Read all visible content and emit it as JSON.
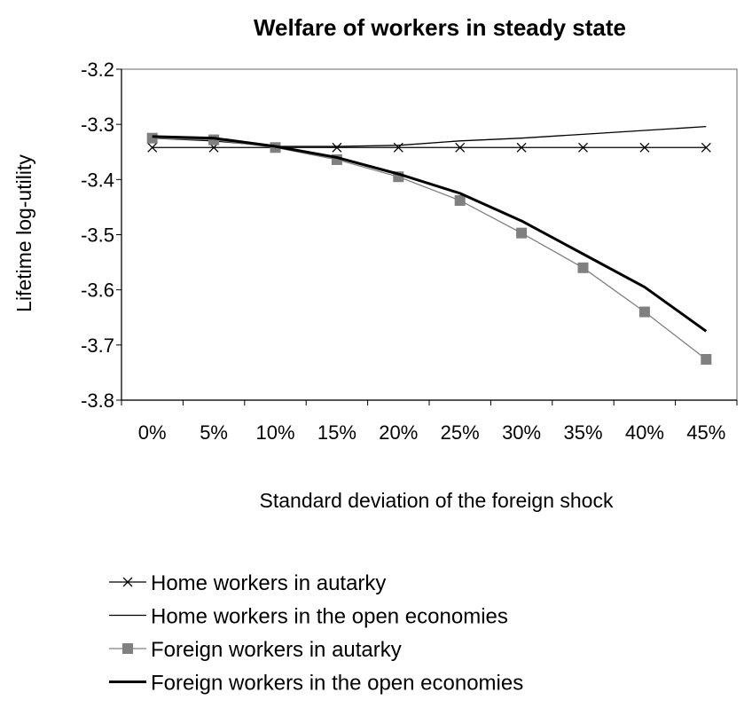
{
  "chart_data": {
    "type": "line",
    "title": "Welfare of workers in steady state",
    "xlabel": "Standard deviation of the foreign shock",
    "ylabel": "Lifetime log-utility",
    "categories": [
      "0%",
      "5%",
      "10%",
      "15%",
      "20%",
      "25%",
      "30%",
      "35%",
      "40%",
      "45%"
    ],
    "ylim": [
      -3.8,
      -3.2
    ],
    "yticks": [
      -3.2,
      -3.3,
      -3.4,
      -3.5,
      -3.6,
      -3.7,
      -3.8
    ],
    "ytick_labels": [
      "-3.2",
      "-3.3",
      "-3.4",
      "-3.5",
      "-3.6",
      "-3.7",
      "-3.8"
    ],
    "grid": false,
    "legend_position": "bottom",
    "series": [
      {
        "name": "Home workers in autarky",
        "marker": "x",
        "color": "#000000",
        "stroke": "thin",
        "values": [
          -3.342,
          -3.342,
          -3.342,
          -3.342,
          -3.342,
          -3.342,
          -3.342,
          -3.342,
          -3.342,
          -3.342
        ]
      },
      {
        "name": "Home workers in the open economies",
        "marker": "none",
        "color": "#000000",
        "stroke": "thin",
        "values": [
          -3.325,
          -3.33,
          -3.34,
          -3.34,
          -3.338,
          -3.33,
          -3.325,
          -3.318,
          -3.311,
          -3.304
        ]
      },
      {
        "name": "Foreign workers in autarky",
        "marker": "square",
        "color": "#808080",
        "stroke": "thin",
        "values": [
          -3.325,
          -3.328,
          -3.342,
          -3.364,
          -3.395,
          -3.438,
          -3.497,
          -3.56,
          -3.64,
          -3.726
        ]
      },
      {
        "name": "Foreign workers in the open economies",
        "marker": "none",
        "color": "#000000",
        "stroke": "thick",
        "values": [
          -3.322,
          -3.325,
          -3.34,
          -3.36,
          -3.39,
          -3.425,
          -3.475,
          -3.535,
          -3.595,
          -3.675
        ]
      }
    ]
  }
}
